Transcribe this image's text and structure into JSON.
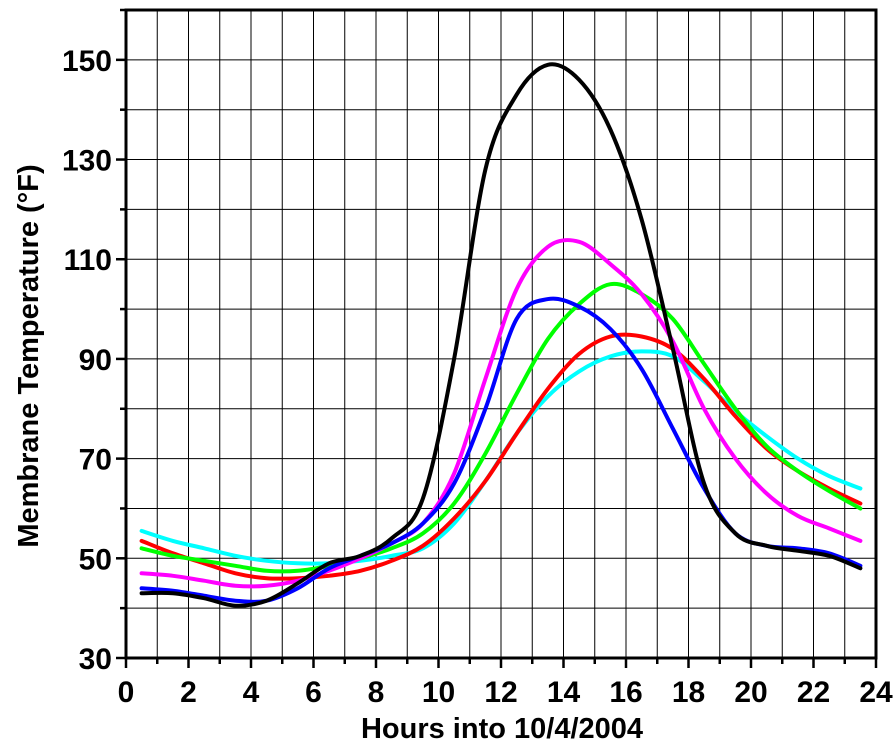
{
  "chart_data": {
    "type": "line",
    "title": "",
    "xlabel": "Hours into 10/4/2004",
    "ylabel": "Membrane Temperature (°F)",
    "xlim": [
      0,
      24
    ],
    "ylim": [
      30,
      160
    ],
    "x_ticks": [
      "0",
      "2",
      "4",
      "6",
      "8",
      "10",
      "12",
      "14",
      "16",
      "18",
      "20",
      "22",
      "24"
    ],
    "y_ticks": [
      "30",
      "50",
      "70",
      "90",
      "110",
      "130",
      "150"
    ],
    "grid": true,
    "x": [
      0.5,
      1.5,
      2.5,
      3.5,
      4.5,
      5.5,
      6.5,
      7.5,
      8.5,
      9.5,
      10.5,
      11.5,
      12.5,
      13.5,
      14.5,
      15.5,
      16.5,
      17.5,
      18.5,
      19.5,
      20.5,
      21.5,
      22.5,
      23.5
    ],
    "series": [
      {
        "color": "#000000",
        "values": [
          43.0,
          43.0,
          42.0,
          40.5,
          41.5,
          45.0,
          49.0,
          50.5,
          54.0,
          62.0,
          90.0,
          128.0,
          143.0,
          149.0,
          146.0,
          136.0,
          118.0,
          92.0,
          65.0,
          55.0,
          52.5,
          51.5,
          50.5,
          48.0
        ]
      },
      {
        "color": "#0000ff",
        "values": [
          44.0,
          43.5,
          42.5,
          41.5,
          41.5,
          44.0,
          48.0,
          50.5,
          53.0,
          57.0,
          65.0,
          80.0,
          98.0,
          102.0,
          100.5,
          96.0,
          88.0,
          76.0,
          64.0,
          55.0,
          52.5,
          52.0,
          51.0,
          48.5
        ]
      },
      {
        "color": "#ff00ff",
        "values": [
          47.0,
          46.5,
          45.5,
          44.5,
          44.5,
          45.5,
          47.5,
          50.0,
          53.0,
          57.0,
          67.0,
          86.0,
          104.0,
          112.5,
          113.5,
          109.0,
          103.0,
          93.5,
          80.0,
          70.0,
          63.0,
          58.5,
          56.0,
          53.5
        ]
      },
      {
        "color": "#00ff00",
        "values": [
          52.0,
          50.5,
          49.5,
          48.5,
          47.5,
          47.5,
          48.5,
          50.0,
          52.0,
          55.0,
          61.0,
          71.0,
          83.0,
          94.0,
          101.0,
          105.0,
          103.0,
          98.0,
          89.0,
          80.0,
          72.5,
          67.5,
          63.5,
          60.0
        ]
      },
      {
        "color": "#ff0000",
        "values": [
          53.5,
          51.0,
          49.0,
          47.0,
          46.0,
          46.0,
          46.5,
          47.5,
          49.5,
          52.5,
          58.0,
          65.5,
          75.0,
          84.0,
          91.0,
          94.5,
          94.5,
          92.0,
          86.0,
          78.5,
          72.0,
          67.5,
          64.0,
          61.0
        ]
      },
      {
        "color": "#00ffff",
        "values": [
          55.5,
          53.5,
          52.0,
          50.5,
          49.5,
          49.0,
          49.0,
          49.5,
          50.5,
          52.0,
          57.0,
          65.5,
          75.0,
          82.5,
          87.5,
          90.5,
          91.5,
          90.5,
          85.5,
          79.5,
          74.5,
          70.0,
          66.5,
          64.0
        ]
      }
    ]
  }
}
